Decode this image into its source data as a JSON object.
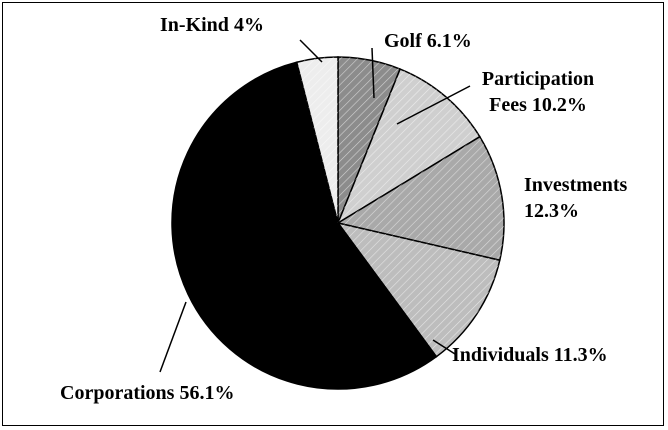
{
  "chart_data": {
    "type": "pie",
    "categories": [
      "Golf",
      "Participation Fees",
      "Investments",
      "Individuals",
      "Corporations",
      "In-Kind"
    ],
    "values": [
      6.1,
      10.2,
      12.3,
      11.3,
      56.1,
      4
    ],
    "value_labels": [
      "6.1%",
      "10.2%",
      "12.3%",
      "11.3%",
      "56.1%",
      "4%"
    ],
    "colors": [
      "#8c8c8c",
      "#cfcfcf",
      "#a9a9a9",
      "#bdbdbd",
      "#000000",
      "#ededed"
    ]
  }
}
